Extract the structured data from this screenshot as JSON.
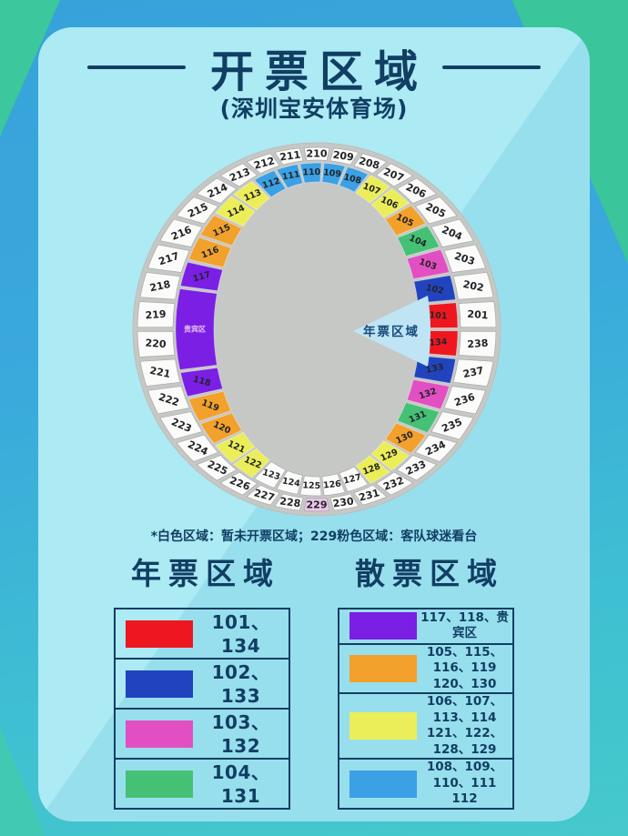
{
  "title": "开票区域",
  "subtitle": "(深圳宝安体育场)",
  "stadium_note": "*白色区域：暂未开票区域；229粉色区域：客队球迷看台",
  "field_wedge_label": "年票区域",
  "palette": {
    "red": "#ee1720",
    "blue": "#2144be",
    "magenta": "#e24fc2",
    "green": "#45c175",
    "purple": "#7b1fe5",
    "orange": "#f2a12c",
    "yellow": "#ebee58",
    "sky": "#3ba0e4",
    "white": "#fbfbf9",
    "pink": "#efc6e9"
  },
  "stadium": {
    "outer_sections": [
      "201",
      "202",
      "203",
      "204",
      "205",
      "206",
      "207",
      "208",
      "209",
      "210",
      "211",
      "212",
      "213",
      "214",
      "215",
      "216",
      "217",
      "218",
      "219",
      "220",
      "221",
      "222",
      "223",
      "224",
      "225",
      "226",
      "227",
      "228",
      "229",
      "230",
      "231",
      "232",
      "233",
      "234",
      "235",
      "236",
      "237",
      "238"
    ],
    "outer_special_colors": {
      "229": "pink"
    },
    "inner_sections": [
      {
        "label": "101",
        "color": "red",
        "slots": 1
      },
      {
        "label": "102",
        "color": "blue",
        "slots": 1
      },
      {
        "label": "103",
        "color": "magenta",
        "slots": 1
      },
      {
        "label": "104",
        "color": "green",
        "slots": 1
      },
      {
        "label": "105",
        "color": "orange",
        "slots": 1
      },
      {
        "label": "106",
        "color": "yellow",
        "slots": 1
      },
      {
        "label": "107",
        "color": "yellow",
        "slots": 1
      },
      {
        "label": "108",
        "color": "sky",
        "slots": 1
      },
      {
        "label": "109",
        "color": "sky",
        "slots": 1
      },
      {
        "label": "110",
        "color": "sky",
        "slots": 1
      },
      {
        "label": "111",
        "color": "sky",
        "slots": 1
      },
      {
        "label": "112",
        "color": "sky",
        "slots": 1
      },
      {
        "label": "113",
        "color": "yellow",
        "slots": 1
      },
      {
        "label": "114",
        "color": "yellow",
        "slots": 1
      },
      {
        "label": "115",
        "color": "orange",
        "slots": 1
      },
      {
        "label": "116",
        "color": "orange",
        "slots": 1
      },
      {
        "label": "117",
        "color": "purple",
        "slots": 1
      },
      {
        "label": "贵宾区",
        "color": "purple",
        "slots": 3,
        "vip": true
      },
      {
        "label": "118",
        "color": "purple",
        "slots": 1
      },
      {
        "label": "119",
        "color": "orange",
        "slots": 1
      },
      {
        "label": "120",
        "color": "orange",
        "slots": 1
      },
      {
        "label": "121",
        "color": "yellow",
        "slots": 1
      },
      {
        "label": "122",
        "color": "yellow",
        "slots": 1
      },
      {
        "label": "123",
        "color": "white",
        "slots": 1
      },
      {
        "label": "124",
        "color": "white",
        "slots": 1
      },
      {
        "label": "125",
        "color": "white",
        "slots": 1
      },
      {
        "label": "126",
        "color": "white",
        "slots": 1
      },
      {
        "label": "127",
        "color": "white",
        "slots": 1
      },
      {
        "label": "128",
        "color": "yellow",
        "slots": 1
      },
      {
        "label": "129",
        "color": "yellow",
        "slots": 1
      },
      {
        "label": "130",
        "color": "orange",
        "slots": 1
      },
      {
        "label": "131",
        "color": "green",
        "slots": 1
      },
      {
        "label": "132",
        "color": "magenta",
        "slots": 1
      },
      {
        "label": "133",
        "color": "blue",
        "slots": 1
      },
      {
        "label": "134",
        "color": "red",
        "slots": 1
      }
    ]
  },
  "legend_left": {
    "heading": "年票区域",
    "rows": [
      {
        "color": "red",
        "label": "101、134"
      },
      {
        "color": "blue",
        "label": "102、133"
      },
      {
        "color": "magenta",
        "label": "103、132"
      },
      {
        "color": "green",
        "label": "104、131"
      }
    ]
  },
  "legend_right": {
    "heading": "散票区域",
    "rows": [
      {
        "color": "purple",
        "label": "117、118、贵宾区"
      },
      {
        "color": "orange",
        "label": "105、115、116、119\n120、130"
      },
      {
        "color": "yellow",
        "label": "106、107、113、114\n121、122、128、129"
      },
      {
        "color": "sky",
        "label": "108、109、110、111\n112"
      }
    ]
  }
}
